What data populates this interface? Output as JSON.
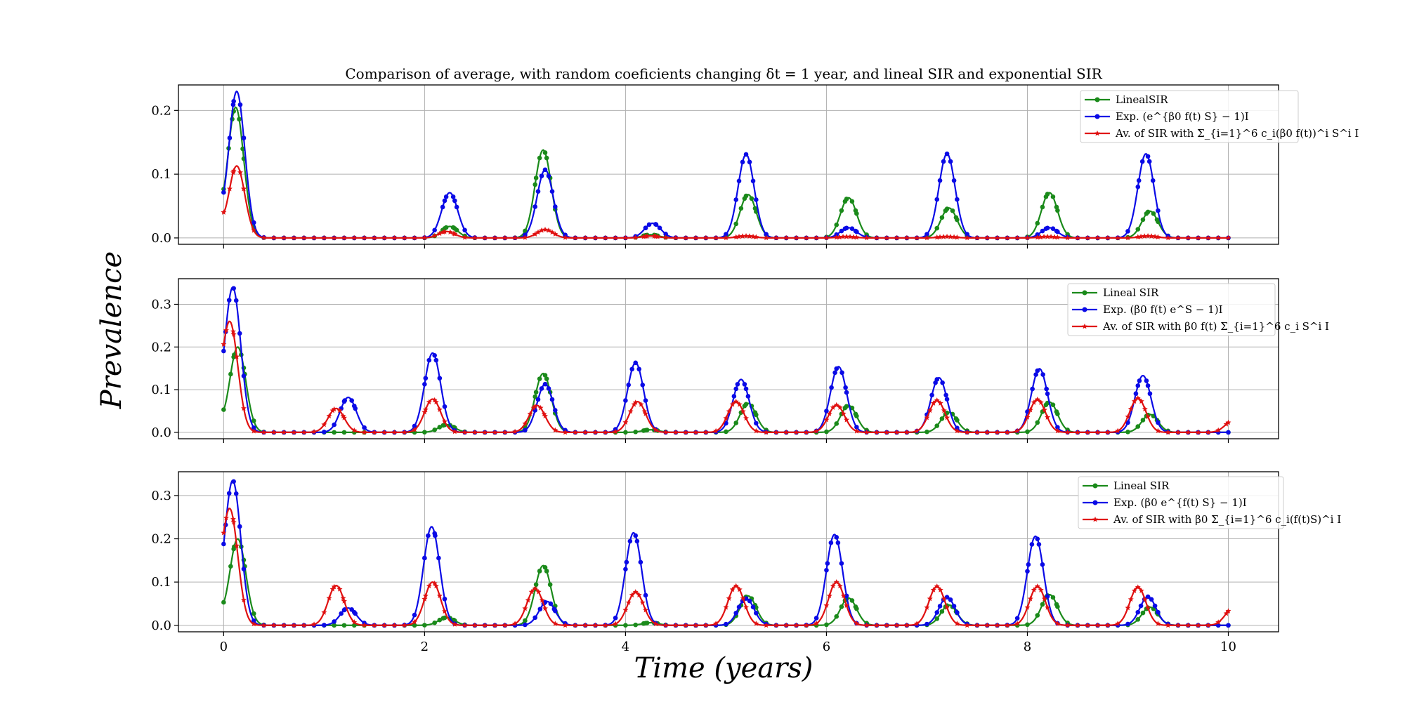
{
  "chart_data": {
    "type": "line",
    "title": "Comparison of average, with random coeficients changing δt = 1 year, and lineal SIR and exponential SIR",
    "xlabel": "Time (years)",
    "ylabel": "Prevalence",
    "xlim": [
      -0.45,
      10.5
    ],
    "xticks": [
      0,
      2,
      4,
      6,
      8,
      10
    ],
    "grid": true,
    "legend_position": "top-right",
    "colors": {
      "green": "#1a8a1a",
      "blue": "#0a0ae6",
      "red": "#e01010"
    },
    "peak_sigma": 0.08,
    "panels": [
      {
        "ylim": [
          -0.01,
          0.24
        ],
        "yticks": [
          0.0,
          0.1,
          0.2
        ],
        "ytick_labels": [
          "0.0",
          "0.1",
          "0.2"
        ],
        "series": [
          {
            "name": "LinealSIR",
            "color": "#1a8a1a",
            "marker": "circle",
            "start": 0.01,
            "peaks": [
              [
                0.12,
                0.205
              ],
              [
                2.25,
                0.018
              ],
              [
                3.18,
                0.138
              ],
              [
                4.25,
                0.005
              ],
              [
                5.22,
                0.068
              ],
              [
                6.22,
                0.063
              ],
              [
                7.22,
                0.047
              ],
              [
                8.22,
                0.071
              ],
              [
                9.22,
                0.042
              ]
            ]
          },
          {
            "name": "Exp. (e^{β0 f(t) S} − 1)I",
            "color": "#0a0ae6",
            "marker": "circle",
            "start": 0.01,
            "peaks": [
              [
                0.13,
                0.23
              ],
              [
                2.25,
                0.071
              ],
              [
                3.2,
                0.107
              ],
              [
                4.27,
                0.023
              ],
              [
                5.2,
                0.131
              ],
              [
                6.22,
                0.016
              ],
              [
                7.2,
                0.132
              ],
              [
                8.22,
                0.016
              ],
              [
                9.18,
                0.132
              ]
            ]
          },
          {
            "name": "Av. of SIR with Σ_{i=1}^6 c_i(β0 f(t))^i S^i I",
            "color": "#e01010",
            "marker": "star",
            "start": 0.01,
            "peaks": [
              [
                0.13,
                0.113
              ],
              [
                2.22,
                0.01
              ],
              [
                3.2,
                0.013
              ],
              [
                4.25,
                0.003
              ],
              [
                5.2,
                0.003
              ],
              [
                6.2,
                0.002
              ],
              [
                7.2,
                0.002
              ],
              [
                8.2,
                0.002
              ],
              [
                9.2,
                0.003
              ]
            ]
          }
        ]
      },
      {
        "ylim": [
          -0.015,
          0.36
        ],
        "yticks": [
          0.0,
          0.1,
          0.2,
          0.3
        ],
        "ytick_labels": [
          "0.0",
          "0.1",
          "0.2",
          "0.3"
        ],
        "series": [
          {
            "name": "Lineal SIR",
            "color": "#1a8a1a",
            "marker": "circle",
            "start": 0.01,
            "peaks": [
              [
                0.14,
                0.2
              ],
              [
                2.22,
                0.018
              ],
              [
                3.18,
                0.138
              ],
              [
                4.25,
                0.006
              ],
              [
                5.22,
                0.068
              ],
              [
                6.22,
                0.063
              ],
              [
                7.22,
                0.047
              ],
              [
                8.22,
                0.071
              ],
              [
                9.22,
                0.042
              ]
            ]
          },
          {
            "name": "Exp. (β0 f(t) e^S − 1)I",
            "color": "#0a0ae6",
            "marker": "circle",
            "start": 0.01,
            "peaks": [
              [
                0.09,
                0.34
              ],
              [
                1.24,
                0.082
              ],
              [
                2.08,
                0.186
              ],
              [
                3.2,
                0.113
              ],
              [
                4.1,
                0.163
              ],
              [
                5.15,
                0.124
              ],
              [
                6.12,
                0.154
              ],
              [
                7.12,
                0.128
              ],
              [
                8.12,
                0.149
              ],
              [
                9.15,
                0.133
              ]
            ]
          },
          {
            "name": "Av. of SIR with β0 f(t) Σ_{i=1}^6 c_i S^i I",
            "color": "#e01010",
            "marker": "star",
            "start": 0.01,
            "peaks": [
              [
                0.06,
                0.26
              ],
              [
                1.12,
                0.056
              ],
              [
                2.08,
                0.078
              ],
              [
                3.12,
                0.063
              ],
              [
                4.12,
                0.072
              ],
              [
                5.1,
                0.072
              ],
              [
                6.1,
                0.064
              ],
              [
                7.1,
                0.075
              ],
              [
                8.1,
                0.077
              ],
              [
                9.1,
                0.08
              ],
              [
                10.05,
                0.028
              ]
            ]
          }
        ]
      },
      {
        "ylim": [
          -0.015,
          0.355
        ],
        "yticks": [
          0.0,
          0.1,
          0.2,
          0.3
        ],
        "ytick_labels": [
          "0.0",
          "0.1",
          "0.2",
          "0.3"
        ],
        "series": [
          {
            "name": "Lineal SIR",
            "color": "#1a8a1a",
            "marker": "circle",
            "start": 0.01,
            "peaks": [
              [
                0.14,
                0.2
              ],
              [
                2.22,
                0.018
              ],
              [
                3.18,
                0.138
              ],
              [
                4.25,
                0.006
              ],
              [
                5.22,
                0.068
              ],
              [
                6.22,
                0.063
              ],
              [
                7.22,
                0.047
              ],
              [
                8.22,
                0.071
              ],
              [
                9.22,
                0.042
              ]
            ]
          },
          {
            "name": "Exp. (β0 e^{f(t) S} − 1)I",
            "color": "#0a0ae6",
            "marker": "circle",
            "start": 0.01,
            "peaks": [
              [
                0.09,
                0.335
              ],
              [
                1.24,
                0.04
              ],
              [
                2.07,
                0.228
              ],
              [
                3.22,
                0.055
              ],
              [
                4.08,
                0.214
              ],
              [
                5.2,
                0.062
              ],
              [
                6.08,
                0.21
              ],
              [
                7.2,
                0.065
              ],
              [
                8.08,
                0.206
              ],
              [
                9.2,
                0.066
              ]
            ]
          },
          {
            "name": "Av. of SIR with β0 Σ_{i=1}^6 c_i(f(t)S)^i I",
            "color": "#e01010",
            "marker": "star",
            "start": 0.01,
            "peaks": [
              [
                0.06,
                0.27
              ],
              [
                1.12,
                0.092
              ],
              [
                2.08,
                0.1
              ],
              [
                3.1,
                0.085
              ],
              [
                4.1,
                0.077
              ],
              [
                5.1,
                0.091
              ],
              [
                6.1,
                0.1
              ],
              [
                7.1,
                0.09
              ],
              [
                8.1,
                0.09
              ],
              [
                9.1,
                0.088
              ],
              [
                10.05,
                0.04
              ]
            ]
          }
        ]
      }
    ]
  }
}
